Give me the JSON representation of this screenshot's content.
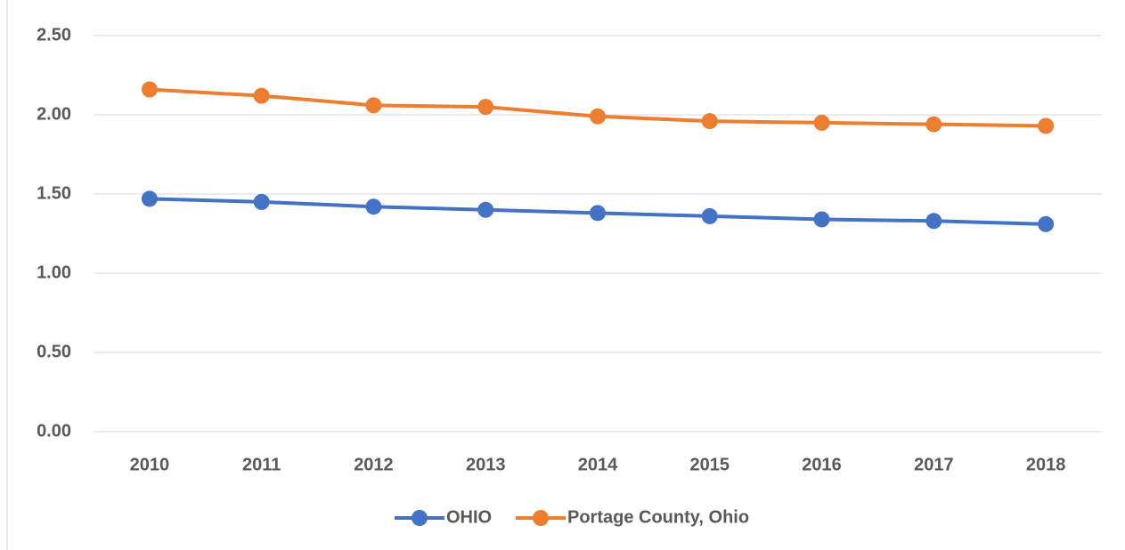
{
  "chart_data": {
    "type": "line",
    "categories": [
      "2010",
      "2011",
      "2012",
      "2013",
      "2014",
      "2015",
      "2016",
      "2017",
      "2018"
    ],
    "series": [
      {
        "name": "OHIO",
        "color": "#4472c4",
        "values": [
          1.47,
          1.45,
          1.42,
          1.4,
          1.38,
          1.36,
          1.34,
          1.33,
          1.31
        ]
      },
      {
        "name": "Portage County, Ohio",
        "color": "#ed7d31",
        "values": [
          2.16,
          2.12,
          2.06,
          2.05,
          1.99,
          1.96,
          1.95,
          1.94,
          1.93
        ]
      }
    ],
    "ylim": [
      0,
      2.5
    ],
    "yticks": [
      {
        "value": 0,
        "label": "0.00"
      },
      {
        "value": 0.5,
        "label": "0.50"
      },
      {
        "value": 1,
        "label": "1.00"
      },
      {
        "value": 1.5,
        "label": "1.50"
      },
      {
        "value": 2,
        "label": "2.00"
      },
      {
        "value": 2.5,
        "label": "2.50"
      }
    ],
    "grid": true,
    "legend": "bottom"
  }
}
